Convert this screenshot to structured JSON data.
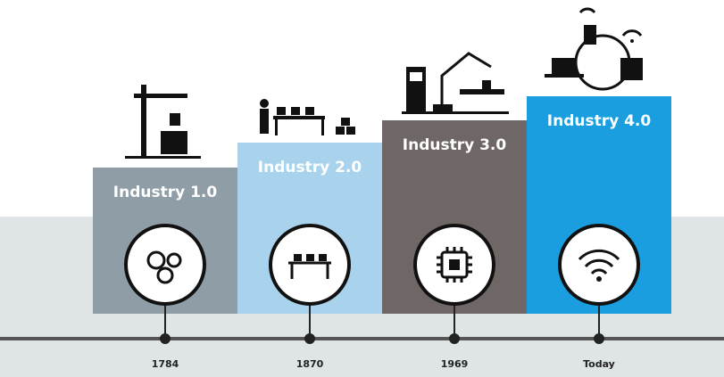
{
  "stages": [
    {
      "label": "Industry 1.0",
      "year": "1784"
    },
    {
      "label": "Industry 2.0",
      "year": "1870"
    },
    {
      "label": "Industry 3.0",
      "year": "1969"
    },
    {
      "label": "Industry 4.0",
      "year": "Today"
    }
  ]
}
